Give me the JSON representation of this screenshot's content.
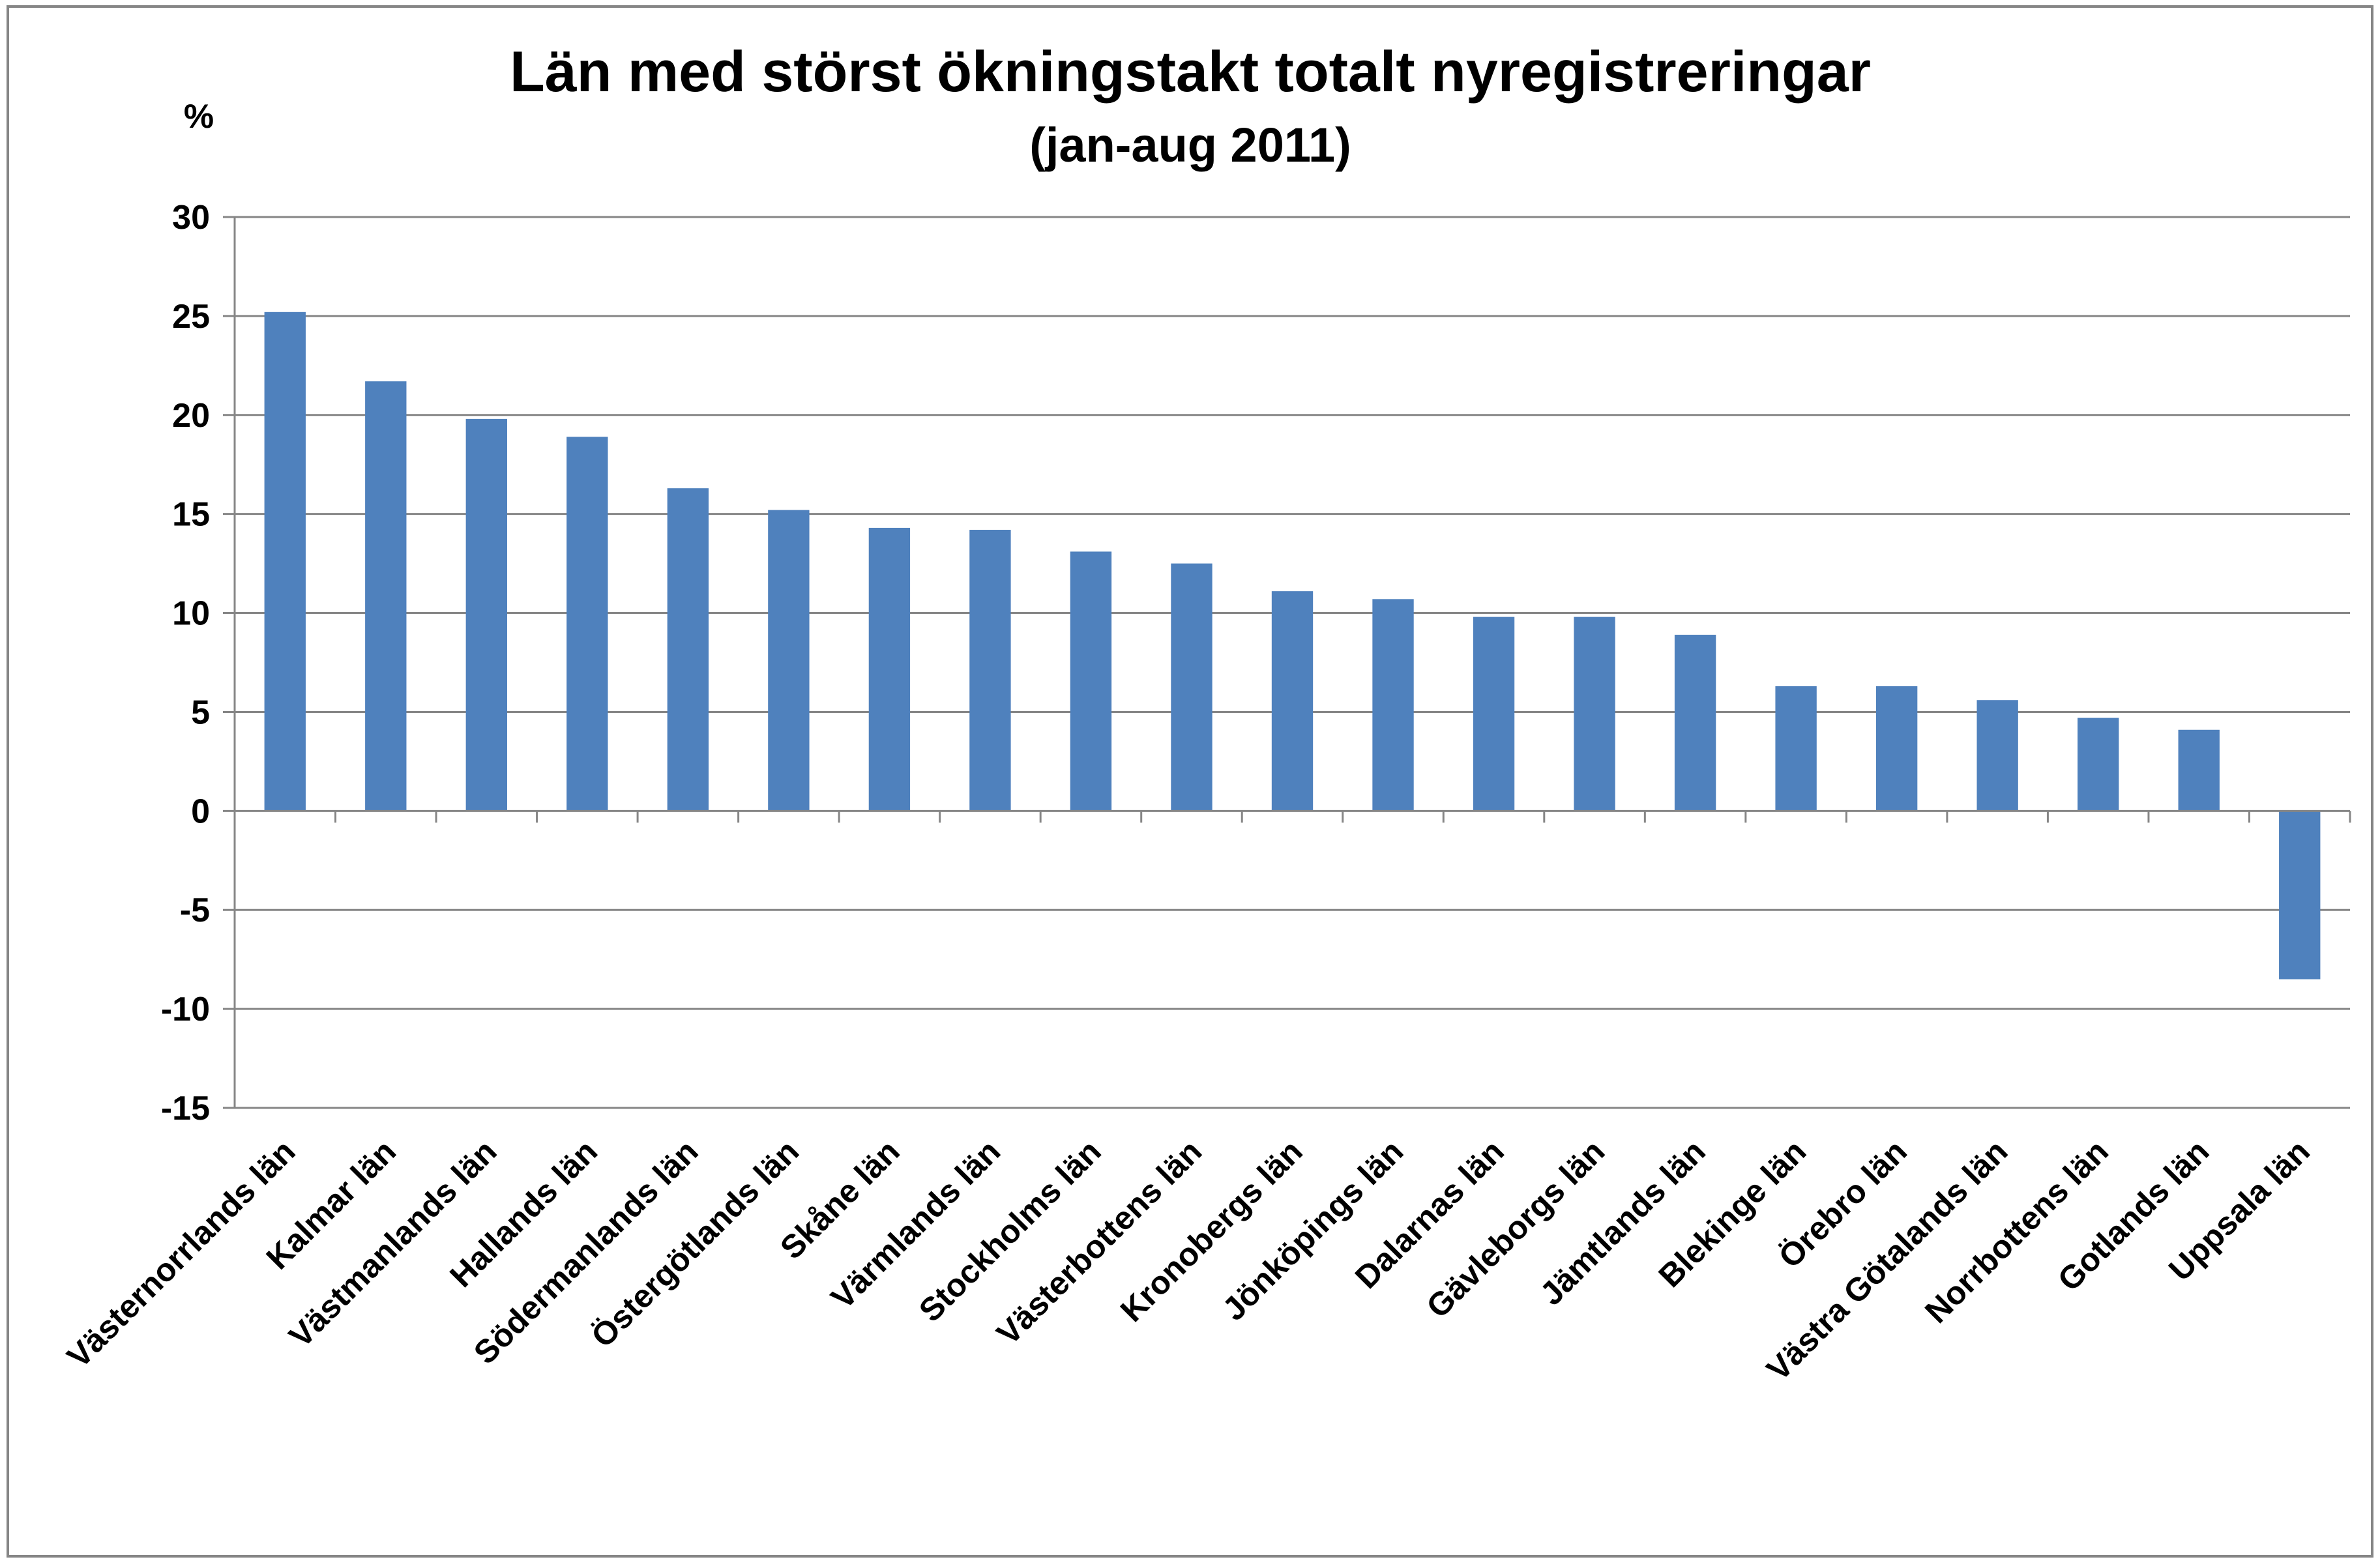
{
  "chart_data": {
    "type": "bar",
    "title": "Län med störst ökningstakt totalt nyregistreringar",
    "subtitle": "(jan-aug 2011)",
    "ylabel": "%",
    "xlabel": "",
    "ylim": [
      -15,
      30
    ],
    "yticks": [
      30,
      25,
      20,
      15,
      10,
      5,
      0,
      -5,
      -10,
      -15
    ],
    "grid": true,
    "legend": "none",
    "bar_color": "#4F81BD",
    "categories": [
      "Västernorrlands län",
      "Kalmar län",
      "Västmanlands län",
      "Hallands län",
      "Södermanlands län",
      "Östergötlands län",
      "Skåne län",
      "Värmlands län",
      "Stockholms län",
      "Västerbottens län",
      "Kronobergs län",
      "Jönköpings län",
      "Dalarnas län",
      "Gävleborgs län",
      "Jämtlands län",
      "Blekinge län",
      "Örebro län",
      "Västra Götalands län",
      "Norrbottens län",
      "Gotlands län",
      "Uppsala län"
    ],
    "values": [
      25.2,
      21.7,
      19.8,
      18.9,
      16.3,
      15.2,
      14.3,
      14.2,
      13.1,
      12.5,
      11.1,
      10.7,
      9.8,
      9.8,
      8.9,
      6.3,
      6.3,
      5.6,
      4.7,
      4.1,
      -8.5
    ]
  }
}
